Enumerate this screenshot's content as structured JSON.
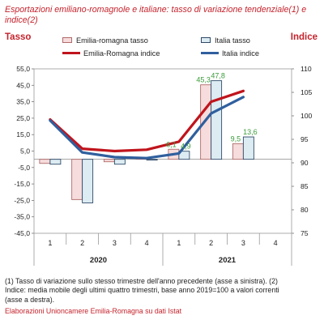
{
  "chart_data": {
    "type": "bar+line",
    "title": "Esportazioni emiliano-romagnole e italiane: tasso di variazione tendenziale(1) e indice(2)",
    "left_axis_title": "Tasso",
    "right_axis_title": "Indice",
    "categories": [
      "1",
      "2",
      "3",
      "4",
      "1",
      "2",
      "3",
      "4"
    ],
    "year_groups": [
      {
        "label": "2020",
        "from": 0,
        "to": 3
      },
      {
        "label": "2021",
        "from": 4,
        "to": 7
      }
    ],
    "left_axis": {
      "min": -45,
      "max": 55,
      "ticks": [
        "55,0",
        "45,0",
        "35,0",
        "25,0",
        "15,0",
        "5,0",
        "-5,0",
        "-15,0",
        "-25,0",
        "-35,0",
        "-45,0"
      ],
      "tick_values": [
        55,
        45,
        35,
        25,
        15,
        5,
        -5,
        -15,
        -25,
        -35,
        -45
      ]
    },
    "right_axis": {
      "min": 75,
      "max": 110,
      "ticks": [
        "110",
        "105",
        "100",
        "95",
        "90",
        "85",
        "80",
        "75"
      ],
      "tick_values": [
        110,
        105,
        100,
        95,
        90,
        85,
        80,
        75
      ]
    },
    "bar_series": [
      {
        "name": "Emilia-romagna tasso",
        "fill": "#f6dcdc",
        "stroke": "#b06a6a",
        "values": [
          -2.5,
          -24.5,
          -1.5,
          1.0,
          6.1,
          45.3,
          9.5,
          null
        ],
        "labels": [
          null,
          null,
          null,
          null,
          "6,1",
          "45,3",
          "9,5",
          null
        ]
      },
      {
        "name": "Italia tasso",
        "fill": "#dcecf2",
        "stroke": "#2f4a68",
        "values": [
          -3.0,
          -26.5,
          -3.0,
          -0.5,
          4.9,
          47.8,
          13.6,
          null
        ],
        "labels": [
          null,
          null,
          null,
          null,
          "4,9",
          "47,8",
          "13,6",
          null
        ]
      }
    ],
    "line_series": [
      {
        "name": "Emilia-Romagna indice",
        "color": "#c0141c",
        "values": [
          99.2,
          93.0,
          92.5,
          92.8,
          94.5,
          103.0,
          105.3,
          null
        ]
      },
      {
        "name": "Italia indice",
        "color": "#2f5f9e",
        "values": [
          99.0,
          92.2,
          91.2,
          91.0,
          92.0,
          100.5,
          104.0,
          null
        ]
      }
    ],
    "data_label_color": "#3a9b3a",
    "grid": false
  },
  "notes": {
    "line1": "(1) Tasso di variazione sullo stesso trimestre dell'anno precedente (asse a sinistra). (2)",
    "line2": "Indice: media mobile degli ultimi quattro trimestri, base anno 2019=100 a valori correnti",
    "line3": "(asse a destra)."
  },
  "source": "Elaborazioni Unioncamere Emilia-Romagna su dati Istat"
}
